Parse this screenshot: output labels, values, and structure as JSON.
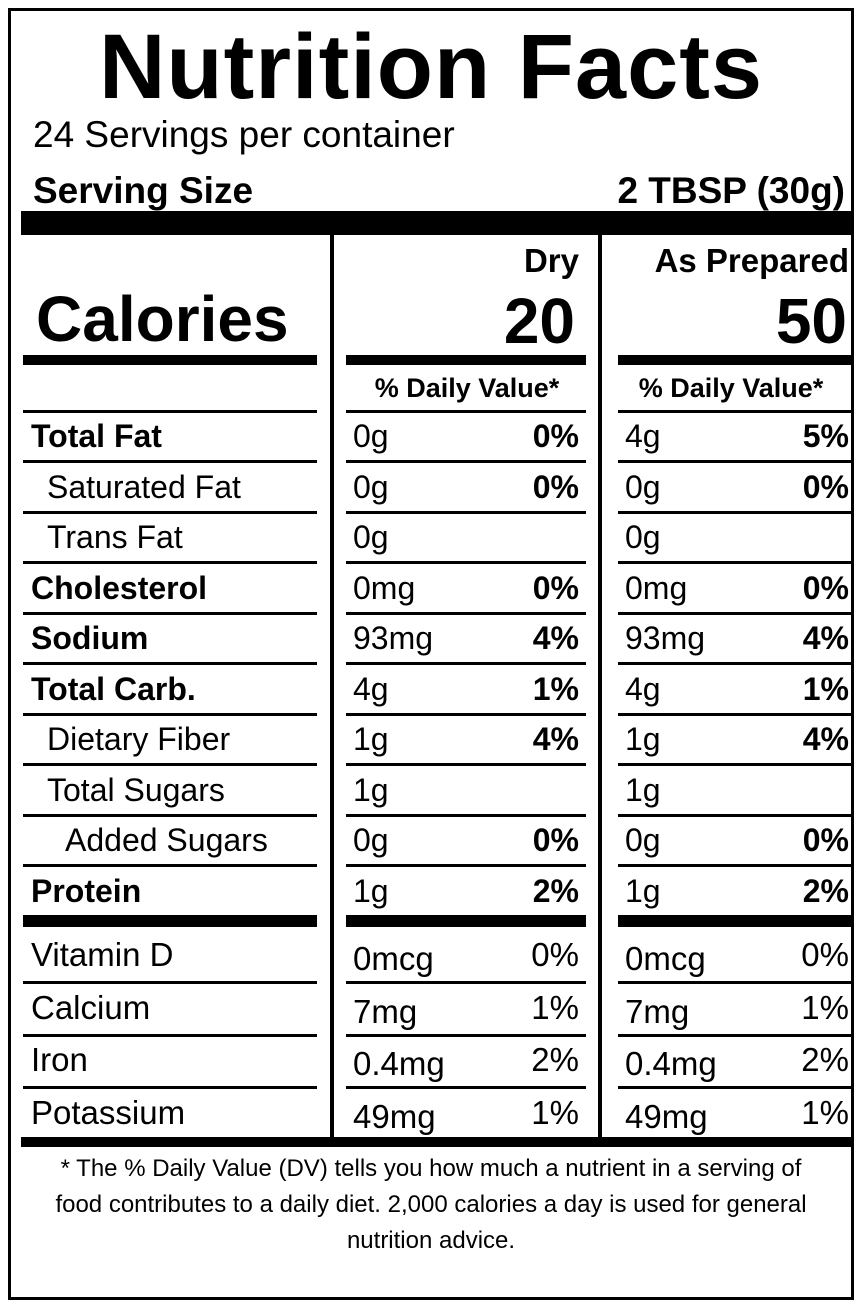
{
  "title": "Nutrition Facts",
  "servings_per_container": "24 Servings per container",
  "serving_size": {
    "label": "Serving Size",
    "value": "2 TBSP (30g)"
  },
  "columns": {
    "dry": "Dry",
    "prepared": "As Prepared"
  },
  "calories": {
    "label": "Calories",
    "dry": "20",
    "prepared": "50"
  },
  "daily_value_header": "% Daily Value*",
  "nutrients": [
    {
      "name": "Total Fat",
      "dry_amount": "0g",
      "dry_dv": "0%",
      "prep_amount": "4g",
      "prep_dv": "5%"
    },
    {
      "name": "Saturated Fat",
      "dry_amount": "0g",
      "dry_dv": "0%",
      "prep_amount": "0g",
      "prep_dv": "0%"
    },
    {
      "name": "Trans Fat",
      "dry_amount": "0g",
      "dry_dv": "",
      "prep_amount": "0g",
      "prep_dv": ""
    },
    {
      "name": "Cholesterol",
      "dry_amount": "0mg",
      "dry_dv": "0%",
      "prep_amount": "0mg",
      "prep_dv": "0%"
    },
    {
      "name": "Sodium",
      "dry_amount": "93mg",
      "dry_dv": "4%",
      "prep_amount": "93mg",
      "prep_dv": "4%"
    },
    {
      "name": "Total Carb.",
      "dry_amount": "4g",
      "dry_dv": "1%",
      "prep_amount": "4g",
      "prep_dv": "1%"
    },
    {
      "name": "Dietary Fiber",
      "dry_amount": "1g",
      "dry_dv": "4%",
      "prep_amount": "1g",
      "prep_dv": "4%"
    },
    {
      "name": "Total Sugars",
      "dry_amount": "1g",
      "dry_dv": "",
      "prep_amount": "1g",
      "prep_dv": ""
    },
    {
      "name": "Added Sugars",
      "dry_amount": "0g",
      "dry_dv": "0%",
      "prep_amount": "0g",
      "prep_dv": "0%"
    },
    {
      "name": "Protein",
      "dry_amount": "1g",
      "dry_dv": "2%",
      "prep_amount": "1g",
      "prep_dv": "2%"
    }
  ],
  "vitamins": [
    {
      "name": "Vitamin D",
      "dry_amount": "0mcg",
      "dry_dv": "0%",
      "prep_amount": "0mcg",
      "prep_dv": "0%"
    },
    {
      "name": "Calcium",
      "dry_amount": "7mg",
      "dry_dv": "1%",
      "prep_amount": "7mg",
      "prep_dv": "1%"
    },
    {
      "name": "Iron",
      "dry_amount": "0.4mg",
      "dry_dv": "2%",
      "prep_amount": "0.4mg",
      "prep_dv": "2%"
    },
    {
      "name": "Potassium",
      "dry_amount": "49mg",
      "dry_dv": "1%",
      "prep_amount": "49mg",
      "prep_dv": "1%"
    }
  ],
  "footnote": "* The % Daily Value (DV) tells you how much a nutrient in a serving of food contributes to a daily diet. 2,000 calories a day is used for general nutrition advice."
}
